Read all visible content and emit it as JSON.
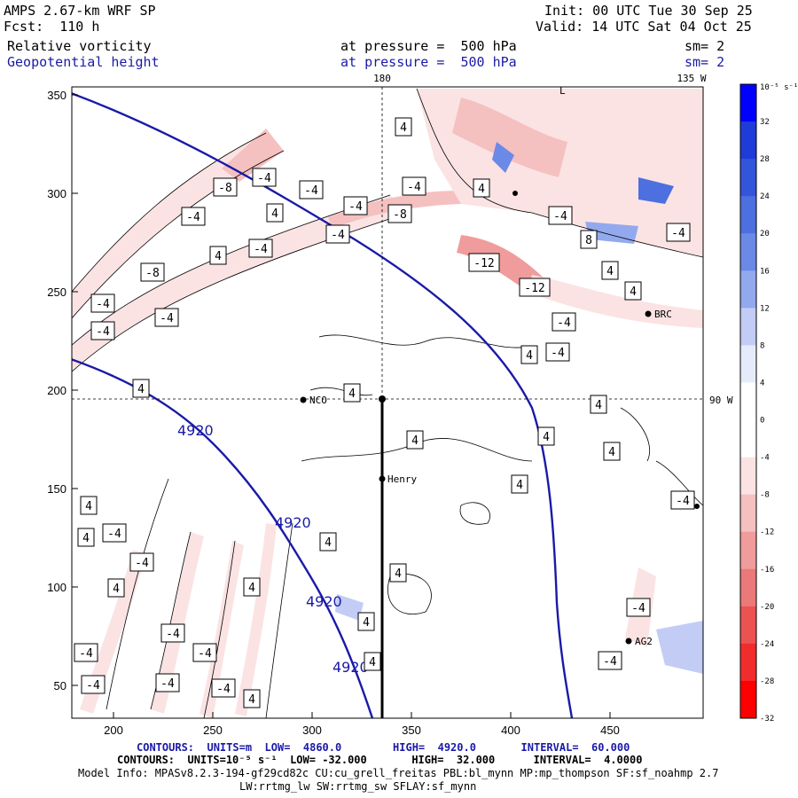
{
  "header": {
    "model": "AMPS 2.67-km WRF SP",
    "forecast": "Fcst:  110 h",
    "init": "Init: 00 UTC Tue 30 Sep 25",
    "valid": "Valid: 14 UTC Sat 04 Oct 25",
    "field1": "Relative vorticity",
    "field2": "Geopotential height",
    "level1": "at pressure =  500 hPa",
    "level2": "at pressure =  500 hPa",
    "smooth1": "sm= 2",
    "smooth2": "sm= 2"
  },
  "map": {
    "lon_top_center": "180",
    "lon_top_right": "135 W",
    "lat_right": "90 W",
    "x_ticks": [
      "200",
      "250",
      "300",
      "350",
      "400",
      "450"
    ],
    "y_ticks": [
      "350",
      "300",
      "250",
      "200",
      "150",
      "100",
      "50"
    ],
    "stations": [
      {
        "name": "NCO"
      },
      {
        "name": "Henry"
      },
      {
        "name": "BRC"
      },
      {
        "name": "AG2"
      }
    ],
    "height_contour_label": "4920",
    "vorticity_labels": [
      "4",
      "-4",
      "-8",
      "-12",
      "8"
    ],
    "top_label": "L"
  },
  "colorbar": {
    "unit_label": "10⁻⁵ s⁻¹",
    "ticks": [
      "32",
      "28",
      "24",
      "20",
      "16",
      "12",
      "8",
      "4",
      "0",
      "-4",
      "-8",
      "-12",
      "-16",
      "-20",
      "-24",
      "-28",
      "-32"
    ],
    "colors": [
      "#0000ff",
      "#1f3bd9",
      "#3355d9",
      "#4d6fdf",
      "#6b89e6",
      "#93a9ee",
      "#c2ccf5",
      "#e6ebfb",
      "#ffffff",
      "#ffffff",
      "#fbe3e3",
      "#f5c0c0",
      "#f09c9c",
      "#eb7979",
      "#ec5252",
      "#f02c2c",
      "#ff0000"
    ]
  },
  "footer": {
    "line1_label": "CONTOURS:",
    "line1_units": "UNITS=m",
    "line1_low": "LOW=  4860.0",
    "line1_high": "HIGH=  4920.0",
    "line1_interval": "INTERVAL=  60.000",
    "line2": "CONTOURS:  UNITS=10⁻⁵ s⁻¹  LOW= -32.000       HIGH=  32.000      INTERVAL=  4.0000",
    "line3": "Model Info: MPASv8.2.3-194-gf29cd82c CU:cu_grell_freitas PBL:bl_mynn MP:mp_thompson SF:sf_noahmp 2.7",
    "line4": "LW:rrtmg_lw SW:rrtmg_sw SFLAY:sf_mynn"
  }
}
